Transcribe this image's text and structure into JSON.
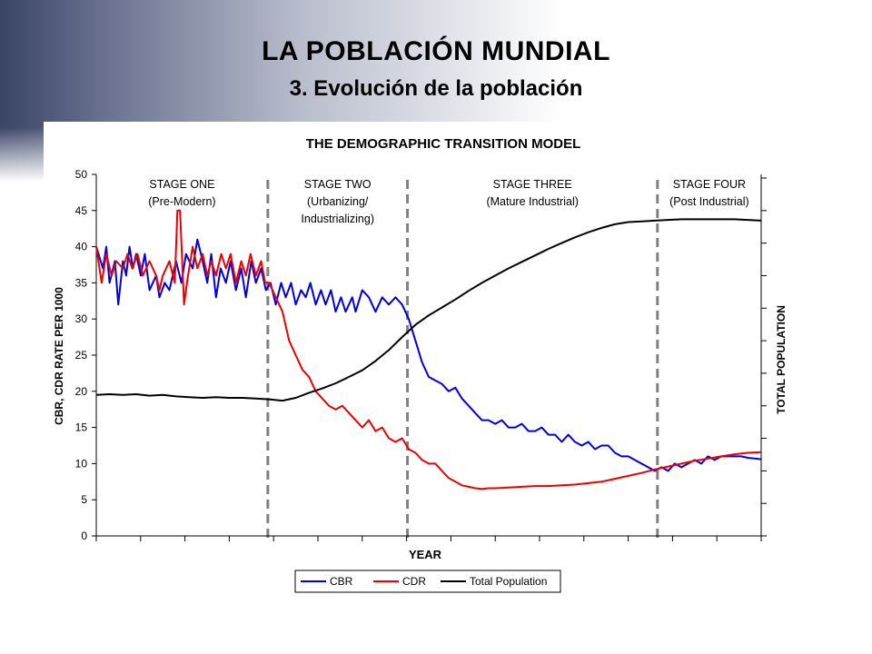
{
  "slide": {
    "title": "LA POBLACIÓN MUNDIAL",
    "subtitle": "3. Evolución de la población"
  },
  "chart_data": {
    "type": "line",
    "title": "THE DEMOGRAPHIC TRANSITION MODEL",
    "xlabel": "YEAR",
    "ylabel": "CBR, CDR RATE PER 1000",
    "y2label": "TOTAL POPULATION",
    "ylim": [
      0,
      50
    ],
    "yticks": [
      0,
      5,
      10,
      15,
      20,
      25,
      30,
      35,
      40,
      45,
      50
    ],
    "x_range": [
      0,
      100
    ],
    "grid": false,
    "legend_position": "bottom",
    "stages": [
      {
        "name": "STAGE ONE",
        "desc": "(Pre-Modern)",
        "start": 0,
        "end": 25.8
      },
      {
        "name": "STAGE TWO",
        "desc": "(Urbanizing/",
        "desc2": "Industrializing)",
        "start": 25.8,
        "end": 46.8
      },
      {
        "name": "STAGE THREE",
        "desc": "(Mature Industrial)",
        "start": 46.8,
        "end": 84.4
      },
      {
        "name": "STAGE FOUR",
        "desc": "(Post Industrial)",
        "start": 84.4,
        "end": 100
      }
    ],
    "stage_boundaries": [
      25.8,
      46.8,
      84.4
    ],
    "series": [
      {
        "name": "CBR",
        "color": "#0000dd",
        "points": [
          [
            0,
            40
          ],
          [
            1,
            37
          ],
          [
            1.5,
            40
          ],
          [
            2,
            35
          ],
          [
            2.8,
            38
          ],
          [
            3.3,
            32
          ],
          [
            4,
            38
          ],
          [
            4.5,
            36
          ],
          [
            5,
            40
          ],
          [
            5.5,
            37
          ],
          [
            6,
            39
          ],
          [
            6.7,
            36
          ],
          [
            7.3,
            39
          ],
          [
            8,
            34
          ],
          [
            9,
            36
          ],
          [
            9.5,
            33
          ],
          [
            10.3,
            35
          ],
          [
            11,
            34
          ],
          [
            12,
            38
          ],
          [
            12.8,
            35
          ],
          [
            13.5,
            39
          ],
          [
            14.5,
            37
          ],
          [
            15.2,
            41
          ],
          [
            16,
            38
          ],
          [
            16.7,
            35
          ],
          [
            17.3,
            39
          ],
          [
            18,
            33
          ],
          [
            18.7,
            37
          ],
          [
            19.5,
            35
          ],
          [
            20.2,
            38
          ],
          [
            21,
            34
          ],
          [
            21.8,
            37
          ],
          [
            22.5,
            33
          ],
          [
            23.3,
            38
          ],
          [
            24,
            35
          ],
          [
            24.8,
            37
          ],
          [
            25.5,
            34
          ],
          [
            26.2,
            35
          ],
          [
            27,
            32
          ],
          [
            27.8,
            35
          ],
          [
            28.5,
            33
          ],
          [
            29.3,
            35
          ],
          [
            30,
            32
          ],
          [
            30.8,
            34
          ],
          [
            31.5,
            33
          ],
          [
            32.2,
            35
          ],
          [
            33,
            32
          ],
          [
            33.8,
            34
          ],
          [
            34.5,
            32
          ],
          [
            35.3,
            34
          ],
          [
            36,
            31
          ],
          [
            36.8,
            33
          ],
          [
            37.5,
            31
          ],
          [
            38.5,
            33
          ],
          [
            39,
            31
          ],
          [
            40,
            34
          ],
          [
            41,
            33
          ],
          [
            42,
            31
          ],
          [
            43,
            33
          ],
          [
            44,
            32
          ],
          [
            45,
            33
          ],
          [
            46,
            32
          ],
          [
            47,
            30
          ],
          [
            48,
            27
          ],
          [
            49,
            24
          ],
          [
            50,
            22
          ],
          [
            51,
            21.5
          ],
          [
            52,
            21
          ],
          [
            53,
            20
          ],
          [
            54,
            20.5
          ],
          [
            55,
            19
          ],
          [
            56,
            18
          ],
          [
            57,
            17
          ],
          [
            58,
            16
          ],
          [
            59,
            16
          ],
          [
            60,
            15.5
          ],
          [
            61,
            16
          ],
          [
            62,
            15
          ],
          [
            63,
            15
          ],
          [
            64,
            15.5
          ],
          [
            65,
            14.5
          ],
          [
            66,
            14.5
          ],
          [
            67,
            15
          ],
          [
            68,
            14
          ],
          [
            69,
            14
          ],
          [
            70,
            13
          ],
          [
            71,
            14
          ],
          [
            72,
            13
          ],
          [
            73,
            12.5
          ],
          [
            74,
            13
          ],
          [
            75,
            12
          ],
          [
            76,
            12.5
          ],
          [
            77,
            12.5
          ],
          [
            78,
            11.5
          ],
          [
            79,
            11
          ],
          [
            80,
            11
          ],
          [
            81,
            10.5
          ],
          [
            82,
            10
          ],
          [
            83,
            9.5
          ],
          [
            84,
            9
          ],
          [
            85,
            9.5
          ],
          [
            86,
            9
          ],
          [
            87,
            10
          ],
          [
            88,
            9.5
          ],
          [
            89,
            10
          ],
          [
            90,
            10.5
          ],
          [
            91,
            10
          ],
          [
            92,
            11
          ],
          [
            93,
            10.5
          ],
          [
            94,
            11
          ],
          [
            95,
            11
          ],
          [
            96,
            11
          ],
          [
            97,
            11
          ],
          [
            98,
            10.8
          ],
          [
            99,
            10.7
          ],
          [
            100,
            10.6
          ]
        ]
      },
      {
        "name": "CDR",
        "color": "#ee0000",
        "points": [
          [
            0,
            40
          ],
          [
            0.8,
            35
          ],
          [
            1.5,
            39
          ],
          [
            2.3,
            36
          ],
          [
            3,
            38
          ],
          [
            4,
            37
          ],
          [
            4.7,
            39
          ],
          [
            5.4,
            37
          ],
          [
            6.2,
            39
          ],
          [
            7,
            36
          ],
          [
            8,
            38
          ],
          [
            9,
            36
          ],
          [
            9.5,
            34
          ],
          [
            10,
            36
          ],
          [
            11,
            38
          ],
          [
            11.8,
            35
          ],
          [
            12.2,
            45
          ],
          [
            12.6,
            45
          ],
          [
            13.2,
            32
          ],
          [
            13.8,
            36
          ],
          [
            14.5,
            40
          ],
          [
            15.2,
            37
          ],
          [
            16,
            39
          ],
          [
            16.7,
            36
          ],
          [
            17.3,
            38
          ],
          [
            18,
            36
          ],
          [
            18.8,
            39
          ],
          [
            19.5,
            37
          ],
          [
            20.2,
            39
          ],
          [
            21,
            35
          ],
          [
            21.8,
            38
          ],
          [
            22.5,
            36
          ],
          [
            23.2,
            39
          ],
          [
            24,
            36
          ],
          [
            24.8,
            38
          ],
          [
            25.4,
            35
          ],
          [
            26,
            35
          ],
          [
            27,
            33
          ],
          [
            28,
            31
          ],
          [
            29,
            27
          ],
          [
            30,
            25
          ],
          [
            31,
            23
          ],
          [
            32,
            22
          ],
          [
            33,
            20
          ],
          [
            34,
            19
          ],
          [
            35,
            18
          ],
          [
            36,
            17.5
          ],
          [
            37,
            18
          ],
          [
            38,
            17
          ],
          [
            39,
            16
          ],
          [
            40,
            15
          ],
          [
            41,
            16
          ],
          [
            42,
            14.5
          ],
          [
            43,
            15
          ],
          [
            44,
            13.5
          ],
          [
            45,
            13
          ],
          [
            46,
            13.5
          ],
          [
            47,
            12
          ],
          [
            48,
            11.5
          ],
          [
            49,
            10.5
          ],
          [
            50,
            10
          ],
          [
            51,
            10
          ],
          [
            52,
            9
          ],
          [
            53,
            8
          ],
          [
            54,
            7.5
          ],
          [
            55,
            7
          ],
          [
            56,
            6.8
          ],
          [
            57,
            6.6
          ],
          [
            58,
            6.5
          ],
          [
            59,
            6.6
          ],
          [
            60,
            6.6
          ],
          [
            62,
            6.7
          ],
          [
            64,
            6.8
          ],
          [
            66,
            6.9
          ],
          [
            68,
            6.9
          ],
          [
            70,
            7
          ],
          [
            72,
            7.1
          ],
          [
            74,
            7.3
          ],
          [
            76,
            7.5
          ],
          [
            78,
            7.9
          ],
          [
            80,
            8.3
          ],
          [
            82,
            8.7
          ],
          [
            84,
            9.2
          ],
          [
            86,
            9.6
          ],
          [
            88,
            10
          ],
          [
            90,
            10.4
          ],
          [
            92,
            10.7
          ],
          [
            94,
            11
          ],
          [
            96,
            11.3
          ],
          [
            98,
            11.5
          ],
          [
            100,
            11.6
          ]
        ]
      },
      {
        "name": "Total Population",
        "color": "#000000",
        "points": [
          [
            0,
            19.5
          ],
          [
            2,
            19.6
          ],
          [
            4,
            19.5
          ],
          [
            6,
            19.6
          ],
          [
            8,
            19.4
          ],
          [
            10,
            19.5
          ],
          [
            12,
            19.3
          ],
          [
            14,
            19.2
          ],
          [
            16,
            19.1
          ],
          [
            18,
            19.2
          ],
          [
            20,
            19.1
          ],
          [
            22,
            19.1
          ],
          [
            24,
            19
          ],
          [
            26,
            18.9
          ],
          [
            28,
            18.7
          ],
          [
            30,
            19.1
          ],
          [
            32,
            19.8
          ],
          [
            34,
            20.4
          ],
          [
            36,
            21.1
          ],
          [
            38,
            22
          ],
          [
            40,
            22.9
          ],
          [
            42,
            24.2
          ],
          [
            44,
            25.7
          ],
          [
            46,
            27.5
          ],
          [
            48,
            29.2
          ],
          [
            50,
            30.5
          ],
          [
            52,
            31.6
          ],
          [
            54,
            32.7
          ],
          [
            56,
            33.9
          ],
          [
            58,
            35
          ],
          [
            60,
            36
          ],
          [
            62,
            37
          ],
          [
            64,
            37.9
          ],
          [
            66,
            38.8
          ],
          [
            68,
            39.7
          ],
          [
            70,
            40.5
          ],
          [
            72,
            41.3
          ],
          [
            74,
            42
          ],
          [
            76,
            42.6
          ],
          [
            78,
            43.1
          ],
          [
            80,
            43.4
          ],
          [
            82,
            43.5
          ],
          [
            84,
            43.6
          ],
          [
            86,
            43.7
          ],
          [
            88,
            43.8
          ],
          [
            90,
            43.8
          ],
          [
            92,
            43.8
          ],
          [
            94,
            43.8
          ],
          [
            96,
            43.8
          ],
          [
            98,
            43.7
          ],
          [
            100,
            43.6
          ]
        ]
      }
    ]
  }
}
